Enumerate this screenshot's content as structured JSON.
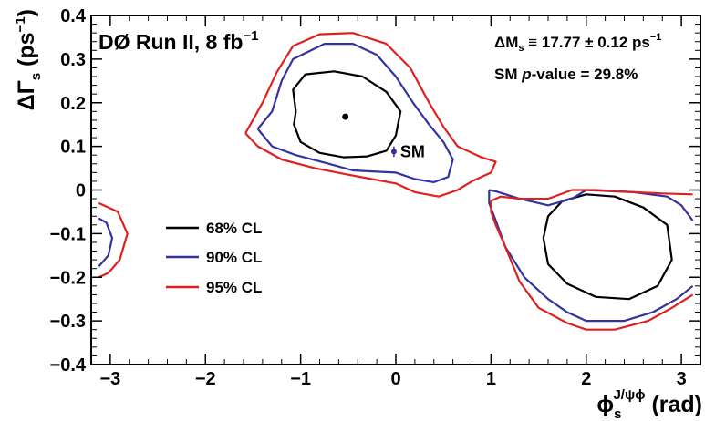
{
  "chart_data": {
    "type": "contour",
    "title": "DØ Run II, 8 fb",
    "title_sup": "−1",
    "xlabel": {
      "main": "ϕ",
      "sub": "s",
      "sup": "J/ψϕ",
      "unit": "(rad)"
    },
    "ylabel": {
      "main": "ΔΓ",
      "sub": "s",
      "unit_pre": "(ps",
      "unit_sup": "−1",
      "unit_post": ")"
    },
    "xlim": [
      -3.2,
      3.2
    ],
    "ylim": [
      -0.4,
      0.4
    ],
    "x_ticks": [
      -3,
      -2,
      -1,
      0,
      1,
      2,
      3
    ],
    "x_tick_labels": [
      "−3",
      "−2",
      "−1",
      "0",
      "1",
      "2",
      "3"
    ],
    "y_ticks": [
      -0.4,
      -0.3,
      -0.2,
      -0.1,
      0,
      0.1,
      0.2,
      0.3,
      0.4
    ],
    "y_tick_labels": [
      "−0.4",
      "−0.3",
      "−0.2",
      "−0.1",
      "0",
      "0.1",
      "0.2",
      "0.3",
      "0.4"
    ],
    "grid": false,
    "legend_position": "left-center",
    "annotations": {
      "dm_line": {
        "lhs": "ΔM",
        "sub": "s",
        "rest": " ≡ 17.77 ± 0.12 ps",
        "sup": "−1"
      },
      "pvalue_line": {
        "pre": "SM ",
        "italic": "p",
        "post": "-value = 29.8%"
      }
    },
    "best_fit": {
      "x": -0.53,
      "y": 0.168,
      "color": "#000000"
    },
    "sm_point": {
      "label": "SM",
      "x": -0.02,
      "y": 0.088,
      "yerr": 0.012,
      "color": "#3333a0"
    },
    "series": [
      {
        "name": "68% CL",
        "color": "#000000",
        "contours": [
          [
            [
              -1.05,
              0.18
            ],
            [
              -1.08,
              0.23
            ],
            [
              -0.95,
              0.265
            ],
            [
              -0.65,
              0.272
            ],
            [
              -0.35,
              0.26
            ],
            [
              -0.1,
              0.225
            ],
            [
              0.05,
              0.18
            ],
            [
              0.0,
              0.125
            ],
            [
              -0.1,
              0.09
            ],
            [
              -0.3,
              0.077
            ],
            [
              -0.55,
              0.075
            ],
            [
              -0.8,
              0.085
            ],
            [
              -1.0,
              0.11
            ],
            [
              -1.07,
              0.15
            ],
            [
              -1.05,
              0.18
            ]
          ],
          [
            [
              1.55,
              -0.11
            ],
            [
              1.6,
              -0.06
            ],
            [
              1.75,
              -0.025
            ],
            [
              2.0,
              -0.01
            ],
            [
              2.3,
              -0.015
            ],
            [
              2.6,
              -0.04
            ],
            [
              2.85,
              -0.08
            ],
            [
              2.9,
              -0.16
            ],
            [
              2.75,
              -0.22
            ],
            [
              2.45,
              -0.25
            ],
            [
              2.1,
              -0.245
            ],
            [
              1.8,
              -0.215
            ],
            [
              1.6,
              -0.17
            ],
            [
              1.55,
              -0.11
            ]
          ]
        ]
      },
      {
        "name": "90% CL",
        "color": "#3333a0",
        "contours": [
          [
            [
              -1.45,
              0.14
            ],
            [
              -1.3,
              0.18
            ],
            [
              -1.2,
              0.25
            ],
            [
              -1.08,
              0.3
            ],
            [
              -0.75,
              0.335
            ],
            [
              -0.45,
              0.335
            ],
            [
              -0.2,
              0.31
            ],
            [
              0.0,
              0.26
            ],
            [
              0.18,
              0.2
            ],
            [
              0.35,
              0.15
            ],
            [
              0.5,
              0.11
            ],
            [
              0.6,
              0.07
            ],
            [
              0.55,
              0.03
            ],
            [
              0.4,
              0.018
            ],
            [
              0.2,
              0.025
            ],
            [
              0.0,
              0.04
            ],
            [
              -0.2,
              0.042
            ],
            [
              -0.45,
              0.045
            ],
            [
              -0.7,
              0.06
            ],
            [
              -1.05,
              0.08
            ],
            [
              -1.3,
              0.1
            ],
            [
              -1.45,
              0.14
            ]
          ],
          [
            [
              0.98,
              0.0
            ],
            [
              1.05,
              -0.003
            ],
            [
              1.3,
              -0.02
            ],
            [
              1.6,
              -0.035
            ],
            [
              1.85,
              -0.02
            ],
            [
              2.0,
              0.0
            ],
            [
              2.5,
              -0.005
            ],
            [
              2.85,
              -0.015
            ],
            [
              3.0,
              -0.035
            ],
            [
              3.12,
              -0.07
            ]
          ],
          [
            [
              3.12,
              -0.22
            ],
            [
              2.95,
              -0.25
            ],
            [
              2.7,
              -0.28
            ],
            [
              2.4,
              -0.3
            ],
            [
              2.0,
              -0.3
            ],
            [
              1.8,
              -0.28
            ],
            [
              1.6,
              -0.25
            ],
            [
              1.35,
              -0.2
            ],
            [
              1.15,
              -0.13
            ],
            [
              1.05,
              -0.07
            ],
            [
              0.98,
              -0.03
            ],
            [
              0.98,
              0.0
            ]
          ],
          [
            [
              -3.12,
              -0.065
            ],
            [
              -3.04,
              -0.075
            ],
            [
              -2.98,
              -0.11
            ],
            [
              -3.02,
              -0.15
            ],
            [
              -3.12,
              -0.175
            ]
          ]
        ]
      },
      {
        "name": "95% CL",
        "color": "#e02020",
        "contours": [
          [
            [
              -1.58,
              0.13
            ],
            [
              -1.4,
              0.2
            ],
            [
              -1.25,
              0.27
            ],
            [
              -1.08,
              0.33
            ],
            [
              -0.8,
              0.357
            ],
            [
              -0.45,
              0.36
            ],
            [
              -0.1,
              0.335
            ],
            [
              0.15,
              0.28
            ],
            [
              0.35,
              0.2
            ],
            [
              0.5,
              0.145
            ],
            [
              0.65,
              0.1
            ],
            [
              0.9,
              0.075
            ],
            [
              1.05,
              0.065
            ],
            [
              1.0,
              0.04
            ],
            [
              0.8,
              0.02
            ],
            [
              0.65,
              0.0
            ],
            [
              0.45,
              -0.015
            ],
            [
              0.2,
              -0.005
            ],
            [
              0.0,
              0.015
            ],
            [
              -0.25,
              0.025
            ],
            [
              -0.5,
              0.035
            ],
            [
              -0.85,
              0.05
            ],
            [
              -1.2,
              0.07
            ],
            [
              -1.45,
              0.1
            ],
            [
              -1.58,
              0.13
            ]
          ],
          [
            [
              1.0,
              -0.025
            ],
            [
              1.1,
              -0.015
            ],
            [
              1.3,
              -0.02
            ],
            [
              1.6,
              -0.02
            ],
            [
              1.85,
              0.0
            ],
            [
              2.1,
              0.0
            ],
            [
              2.5,
              -0.005
            ],
            [
              2.8,
              -0.008
            ],
            [
              3.12,
              -0.01
            ]
          ],
          [
            [
              3.12,
              -0.24
            ],
            [
              2.9,
              -0.27
            ],
            [
              2.65,
              -0.3
            ],
            [
              2.3,
              -0.32
            ],
            [
              2.0,
              -0.32
            ],
            [
              1.8,
              -0.305
            ],
            [
              1.5,
              -0.27
            ],
            [
              1.3,
              -0.21
            ],
            [
              1.15,
              -0.13
            ],
            [
              1.05,
              -0.08
            ],
            [
              1.0,
              -0.05
            ],
            [
              1.0,
              -0.025
            ]
          ],
          [
            [
              -3.12,
              -0.03
            ],
            [
              -2.92,
              -0.05
            ],
            [
              -2.82,
              -0.1
            ],
            [
              -2.9,
              -0.16
            ],
            [
              -3.02,
              -0.19
            ],
            [
              -3.12,
              -0.2
            ]
          ]
        ]
      }
    ]
  }
}
